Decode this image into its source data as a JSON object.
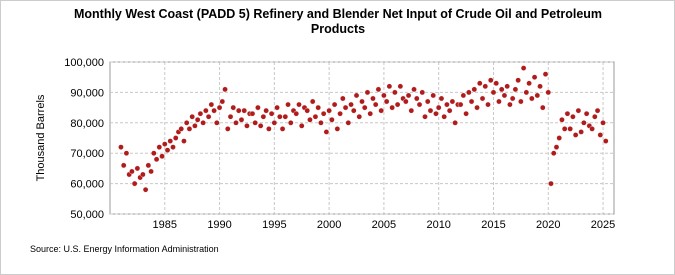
{
  "chart_data": {
    "type": "scatter",
    "title": "Monthly West Coast (PADD 5) Refinery and Blender Net Input of Crude Oil and Petroleum Products",
    "y_label": "Thousand Barrels",
    "source": "Source: U.S. Energy Information Administration",
    "color": "#b01c1c",
    "grid": true,
    "xlim": [
      1980,
      2026
    ],
    "xticks": [
      1985,
      1990,
      1995,
      2000,
      2005,
      2010,
      2015,
      2020,
      2025
    ],
    "ylim": [
      50000,
      100000
    ],
    "yticks": [
      {
        "value": 50000,
        "label": "50,000"
      },
      {
        "value": 60000,
        "label": "60,000"
      },
      {
        "value": 70000,
        "label": "70,000"
      },
      {
        "value": 80000,
        "label": "80,000"
      },
      {
        "value": 90000,
        "label": "90,000"
      },
      {
        "value": 100000,
        "label": "100,000"
      }
    ],
    "x": [
      1981,
      1981.25,
      1981.5,
      1981.75,
      1982,
      1982.25,
      1982.5,
      1982.75,
      1983,
      1983.25,
      1983.5,
      1983.75,
      1984,
      1984.25,
      1984.5,
      1984.75,
      1985,
      1985.25,
      1985.5,
      1985.75,
      1986,
      1986.25,
      1986.5,
      1986.75,
      1987,
      1987.25,
      1987.5,
      1987.75,
      1988,
      1988.25,
      1988.5,
      1988.75,
      1989,
      1989.25,
      1989.5,
      1989.75,
      1990,
      1990.25,
      1990.5,
      1990.75,
      1991,
      1991.25,
      1991.5,
      1991.75,
      1992,
      1992.25,
      1992.5,
      1992.75,
      1993,
      1993.25,
      1993.5,
      1993.75,
      1994,
      1994.25,
      1994.5,
      1994.75,
      1995,
      1995.25,
      1995.5,
      1995.75,
      1996,
      1996.25,
      1996.5,
      1996.75,
      1997,
      1997.25,
      1997.5,
      1997.75,
      1998,
      1998.25,
      1998.5,
      1998.75,
      1999,
      1999.25,
      1999.5,
      1999.75,
      2000,
      2000.25,
      2000.5,
      2000.75,
      2001,
      2001.25,
      2001.5,
      2001.75,
      2002,
      2002.25,
      2002.5,
      2002.75,
      2003,
      2003.25,
      2003.5,
      2003.75,
      2004,
      2004.25,
      2004.5,
      2004.75,
      2005,
      2005.25,
      2005.5,
      2005.75,
      2006,
      2006.25,
      2006.5,
      2006.75,
      2007,
      2007.25,
      2007.5,
      2007.75,
      2008,
      2008.25,
      2008.5,
      2008.75,
      2009,
      2009.25,
      2009.5,
      2009.75,
      2010,
      2010.25,
      2010.5,
      2010.75,
      2011,
      2011.25,
      2011.5,
      2011.75,
      2012,
      2012.25,
      2012.5,
      2012.75,
      2013,
      2013.25,
      2013.5,
      2013.75,
      2014,
      2014.25,
      2014.5,
      2014.75,
      2015,
      2015.25,
      2015.5,
      2015.75,
      2016,
      2016.25,
      2016.5,
      2016.75,
      2017,
      2017.25,
      2017.5,
      2017.75,
      2018,
      2018.25,
      2018.5,
      2018.75,
      2019,
      2019.25,
      2019.5,
      2019.75,
      2020,
      2020.25,
      2020.5,
      2020.75,
      2021,
      2021.25,
      2021.5,
      2021.75,
      2022,
      2022.25,
      2022.5,
      2022.75,
      2023,
      2023.25,
      2023.5,
      2023.75,
      2024,
      2024.25,
      2024.5,
      2024.75,
      2025,
      2025.25
    ],
    "values": [
      72000,
      66000,
      70000,
      63000,
      64000,
      60000,
      65000,
      62000,
      63000,
      58000,
      66000,
      64000,
      70000,
      68000,
      72000,
      69000,
      73000,
      71000,
      74000,
      72000,
      75000,
      77000,
      78000,
      74000,
      80000,
      78000,
      82000,
      79000,
      81000,
      83000,
      80000,
      84000,
      82000,
      86000,
      84000,
      80000,
      85000,
      87000,
      91000,
      78000,
      82000,
      85000,
      80000,
      84000,
      81000,
      84000,
      79000,
      83000,
      83000,
      80000,
      85000,
      79000,
      82000,
      84000,
      78000,
      83000,
      80000,
      85000,
      82000,
      78000,
      82000,
      86000,
      80000,
      84000,
      83000,
      86000,
      79000,
      85000,
      84000,
      81000,
      87000,
      82000,
      85000,
      80000,
      83000,
      77000,
      84000,
      81000,
      86000,
      78000,
      83000,
      88000,
      85000,
      80000,
      86000,
      84000,
      89000,
      82000,
      87000,
      85000,
      90000,
      83000,
      88000,
      86000,
      91000,
      84000,
      89000,
      87000,
      92000,
      85000,
      90000,
      86000,
      92000,
      88000,
      87000,
      89000,
      84000,
      91000,
      88000,
      86000,
      90000,
      82000,
      87000,
      84000,
      89000,
      83000,
      85000,
      88000,
      82000,
      86000,
      84000,
      87000,
      80000,
      86000,
      86000,
      89000,
      83000,
      90000,
      87000,
      91000,
      85000,
      93000,
      88000,
      92000,
      86000,
      94000,
      90000,
      93000,
      87000,
      91000,
      89000,
      92000,
      86000,
      88000,
      91000,
      94000,
      87000,
      98000,
      90000,
      93000,
      88000,
      95000,
      89000,
      92000,
      85000,
      96000,
      90000,
      60000,
      70000,
      72000,
      75000,
      81000,
      78000,
      83000,
      78000,
      82000,
      76000,
      84000,
      77000,
      80000,
      83000,
      79000,
      78000,
      82000,
      84000,
      76000,
      80000,
      74000
    ]
  }
}
